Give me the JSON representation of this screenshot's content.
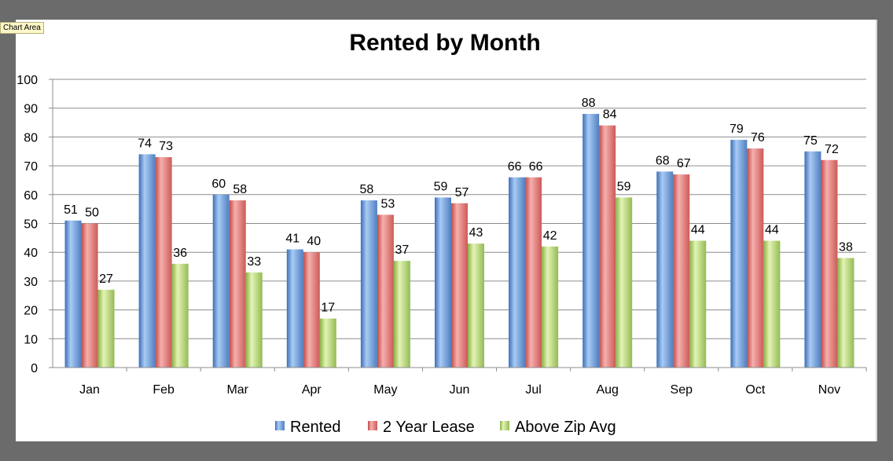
{
  "tooltip": {
    "text": "Chart Area"
  },
  "colors": {
    "rented": "#4f81bd",
    "lease": "#c0504d",
    "above": "#9bbb59"
  },
  "chart_data": {
    "type": "bar",
    "title": "Rented by Month",
    "categories": [
      "Jan",
      "Feb",
      "Mar",
      "Apr",
      "May",
      "Jun",
      "Jul",
      "Aug",
      "Sep",
      "Oct",
      "Nov"
    ],
    "series": [
      {
        "name": "Rented",
        "values": [
          51,
          74,
          60,
          41,
          58,
          59,
          66,
          88,
          68,
          79,
          75
        ]
      },
      {
        "name": "2 Year Lease",
        "values": [
          50,
          73,
          58,
          40,
          53,
          57,
          66,
          84,
          67,
          76,
          72
        ]
      },
      {
        "name": "Above Zip Avg",
        "values": [
          27,
          36,
          33,
          17,
          37,
          43,
          42,
          59,
          44,
          44,
          38
        ]
      }
    ],
    "ylim": [
      0,
      100
    ],
    "yticks": [
      0,
      10,
      20,
      30,
      40,
      50,
      60,
      70,
      80,
      90,
      100
    ],
    "grid": true,
    "legend": "bottom",
    "xlabel": "",
    "ylabel": ""
  }
}
